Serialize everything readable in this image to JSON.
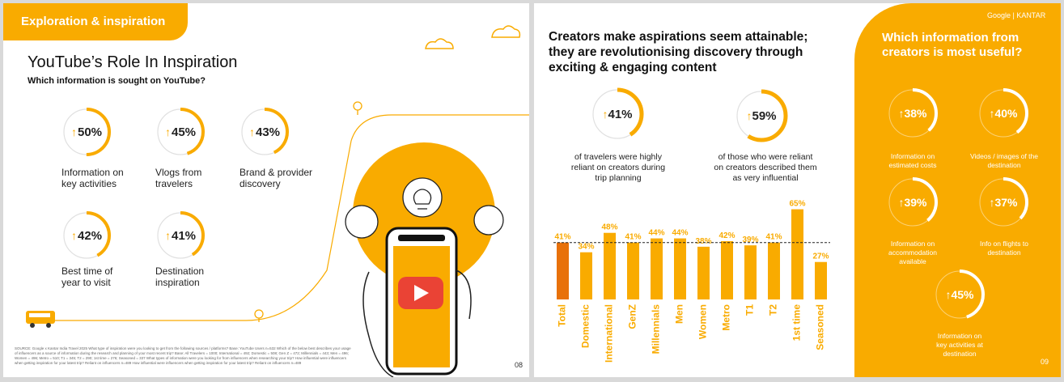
{
  "left": {
    "tag": "Exploration & inspiration",
    "title": "YouTube’s Role In Inspiration",
    "subtitle": "Which information is sought on YouTube?",
    "stats": [
      {
        "value": "50%",
        "fraction": 0.5,
        "label1": "Information on",
        "label2": "key activities"
      },
      {
        "value": "45%",
        "fraction": 0.45,
        "label1": "Vlogs from",
        "label2": "travelers"
      },
      {
        "value": "43%",
        "fraction": 0.43,
        "label1": "Brand & provider",
        "label2": "discovery"
      },
      {
        "value": "42%",
        "fraction": 0.42,
        "label1": "Best time of",
        "label2": "year to visit"
      },
      {
        "value": "41%",
        "fraction": 0.41,
        "label1": "Destination",
        "label2": "inspiration"
      }
    ],
    "source": "SOURCE: Google x Kantar India Travel 2025 What type of inspiration were you looking to get from the following sources / platforms? Base: YouTube Users n=532 Which of the below best describes your usage of influencers as a source of information during the research and planning of your most recent trip? Base: All Travelers = 1000; International = 492; Domestic = 508; Gen Z = 472; Millennials = 443; Men = 496; Women = 496; Metro = 510; T1 = 345; T2 = 290; 1st time = 276; Seasoned = 337 What types of information were you looking for from influencers when researching your trip? How influential were influencers when getting inspiration for your latest trip? Reliant on influencers n=489 How influential were influencers when getting inspiration for your latest trip? Reliant on influencers n=489",
    "page": "08"
  },
  "right": {
    "title_line1": "Creators make aspirations seem attainable;",
    "title_line2": "they are revolutionising discovery through",
    "title_line3": "exciting & engaging content",
    "stat1": {
      "value": "41%",
      "fraction": 0.41,
      "d1": "of travelers were highly",
      "d2": "reliant on creators during",
      "d3": "trip planning"
    },
    "stat2": {
      "value": "59%",
      "fraction": 0.59,
      "d1": "of those who were reliant",
      "d2": "on creators described them",
      "d3": "as very influential"
    },
    "brand": "Google | KANTAR",
    "panel_title1": "Which information from",
    "panel_title2": "creators is most useful?",
    "panel_stats": [
      {
        "value": "38%",
        "fraction": 0.38,
        "d1": "Information on",
        "d2": "estimated costs",
        "d3": ""
      },
      {
        "value": "40%",
        "fraction": 0.4,
        "d1": "Videos / images of the",
        "d2": "destination",
        "d3": ""
      },
      {
        "value": "39%",
        "fraction": 0.39,
        "d1": "Information on",
        "d2": "accommodation",
        "d3": "available"
      },
      {
        "value": "37%",
        "fraction": 0.37,
        "d1": "Info on flights to",
        "d2": "destination",
        "d3": ""
      },
      {
        "value": "45%",
        "fraction": 0.45,
        "d1": "Information on",
        "d2": "key activities at",
        "d3": "destination"
      }
    ],
    "page": "09"
  },
  "colors": {
    "accent": "#f9ab00",
    "highlight": "#e8710a"
  },
  "chart_data": {
    "type": "bar",
    "categories": [
      "Total",
      "Domestic",
      "International",
      "GenZ",
      "Millennials",
      "Men",
      "Women",
      "Metro",
      "T1",
      "T2",
      "1st time",
      "Seasoned"
    ],
    "values": [
      41,
      34,
      48,
      41,
      44,
      44,
      38,
      42,
      39,
      41,
      65,
      27
    ],
    "value_labels": [
      "41%",
      "34%",
      "48%",
      "41%",
      "44%",
      "44%",
      "38%",
      "42%",
      "39%",
      "41%",
      "65%",
      "27%"
    ],
    "highlight_index": 0,
    "reference_line": 41,
    "ylim": [
      0,
      70
    ],
    "grid": false
  }
}
